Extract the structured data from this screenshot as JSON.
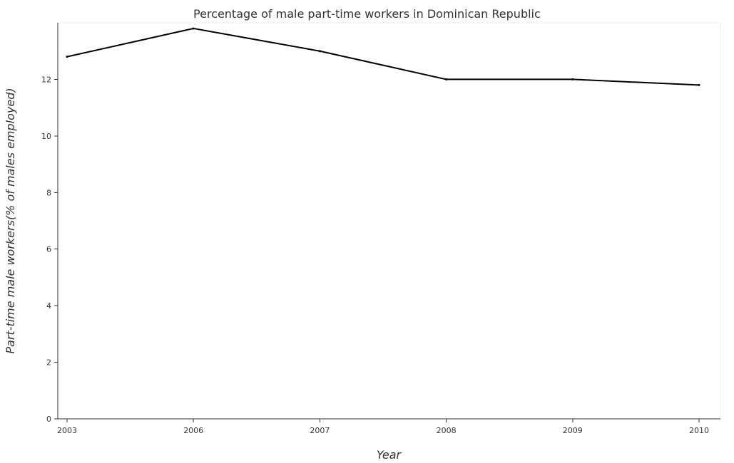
{
  "chart_data": {
    "type": "line",
    "title": "Percentage of male part-time workers in Dominican Republic",
    "xlabel": "Year",
    "ylabel": "Part-time male workers(% of males employed)",
    "categories": [
      "2003",
      "2006",
      "2007",
      "2008",
      "2009",
      "2010"
    ],
    "series": [
      {
        "values": [
          12.8,
          13.8,
          13.0,
          12.0,
          12.0,
          11.8
        ]
      }
    ],
    "yticks": [
      "0",
      "2",
      "4",
      "6",
      "8",
      "10",
      "12"
    ],
    "ylim": [
      0,
      14
    ],
    "grid": false,
    "legend": "none",
    "line_color": "#000000"
  }
}
